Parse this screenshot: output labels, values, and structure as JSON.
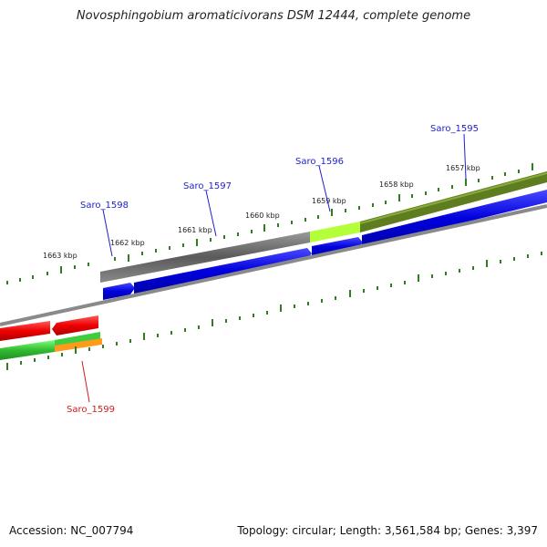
{
  "title": "Novosphingobium aromaticivorans DSM 12444, complete genome",
  "footer": {
    "accession": "Accession: NC_007794",
    "summary": "Topology: circular; Length: 3,561,584 bp; Genes: 3,397"
  },
  "ruler": {
    "labels": [
      "1663 kbp",
      "1662 kbp",
      "1661 kbp",
      "1660 kbp",
      "1659 kbp",
      "1658 kbp",
      "1657 kbp"
    ]
  },
  "genes": [
    {
      "name": "Saro_1595",
      "color": "#1f1fcc"
    },
    {
      "name": "Saro_1596",
      "color": "#1f1fcc"
    },
    {
      "name": "Saro_1597",
      "color": "#1f1fcc"
    },
    {
      "name": "Saro_1598",
      "color": "#1f1fcc"
    },
    {
      "name": "Saro_1599",
      "color": "#cc1f1f"
    }
  ],
  "colors": {
    "forward_cds": "#0000ee",
    "reverse_cds": "#ee0000",
    "backbone": "#8a8a8a",
    "tick": "#2f7f1f",
    "gc_gray": "#6a6a6a",
    "gc_lime": "#b5ff3a",
    "gc_olive": "#5d7d1f",
    "rev_green": "#3fcc3f",
    "rev_orange": "#ff9a1a"
  }
}
